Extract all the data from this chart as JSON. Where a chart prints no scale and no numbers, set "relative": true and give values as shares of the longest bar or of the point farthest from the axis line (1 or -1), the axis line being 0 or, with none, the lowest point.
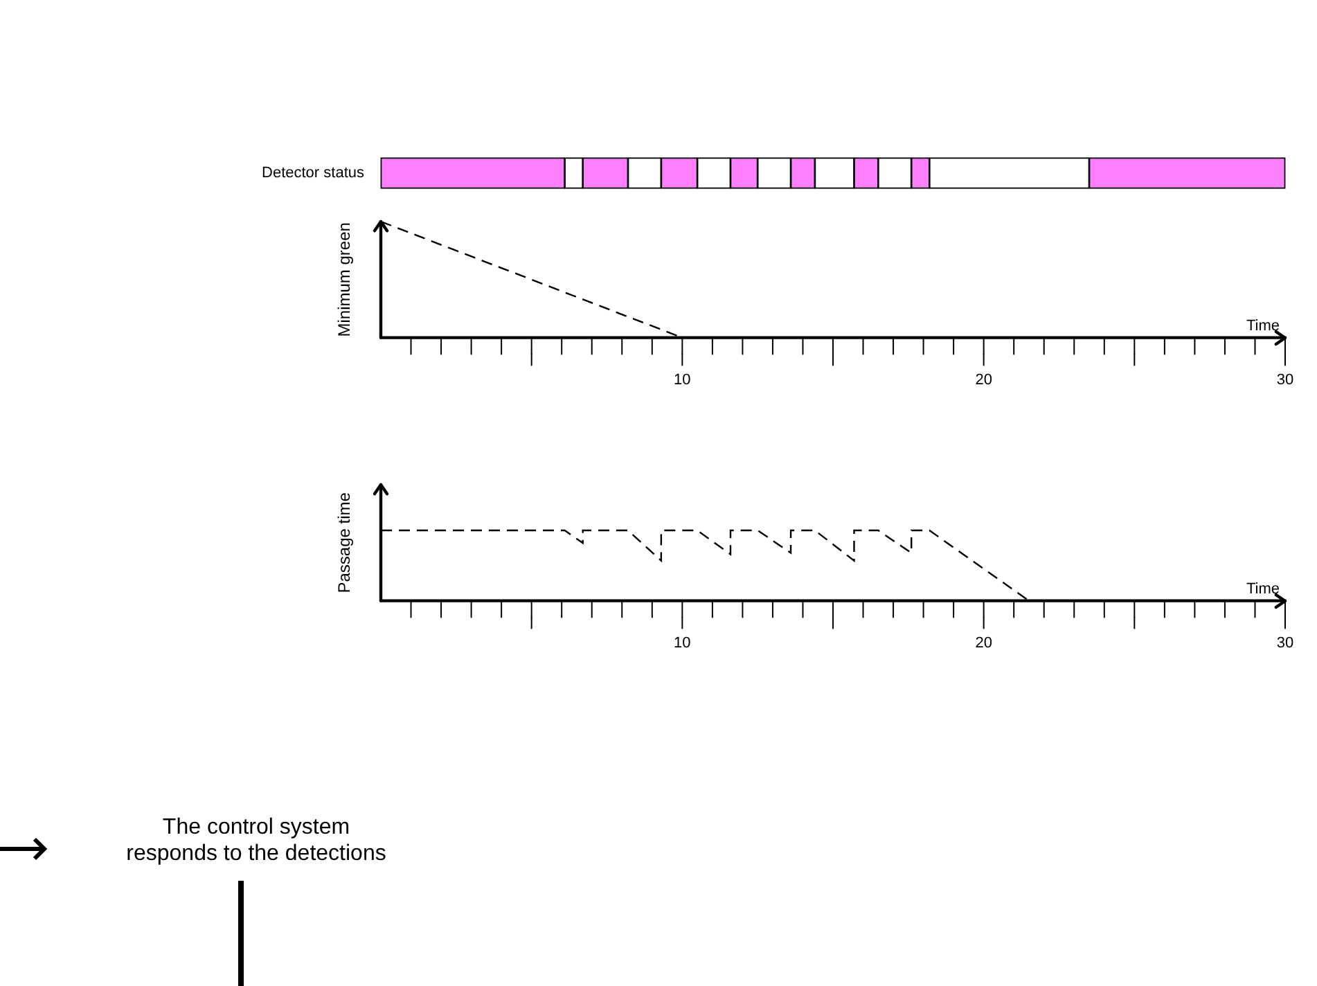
{
  "chart_data": [
    {
      "type": "bar",
      "orientation": "horizontal",
      "stacked": true,
      "categories": [
        "Detector status"
      ],
      "xlim": [
        0,
        30
      ],
      "tick_labels": "y",
      "legend": false,
      "grid": false,
      "series": [
        {
          "color": "#ff80ff",
          "values": [
            6.1
          ]
        },
        {
          "color": "#ffffff",
          "values": [
            0.6
          ]
        },
        {
          "color": "#ff80ff",
          "values": [
            1.5
          ]
        },
        {
          "color": "#ffffff",
          "values": [
            1.1
          ]
        },
        {
          "color": "#ff80ff",
          "values": [
            1.2
          ]
        },
        {
          "color": "#ffffff",
          "values": [
            1.1
          ]
        },
        {
          "color": "#ff80ff",
          "values": [
            0.9
          ]
        },
        {
          "color": "#ffffff",
          "values": [
            1.1
          ]
        },
        {
          "color": "#ff80ff",
          "values": [
            0.8
          ]
        },
        {
          "color": "#ffffff",
          "values": [
            1.3
          ]
        },
        {
          "color": "#ff80ff",
          "values": [
            0.8
          ]
        },
        {
          "color": "#ffffff",
          "values": [
            1.1
          ]
        },
        {
          "color": "#ff80ff",
          "values": [
            0.6
          ]
        },
        {
          "color": "#ffffff",
          "values": [
            5.3
          ]
        },
        {
          "color": "#ff80ff",
          "values": [
            6.5
          ]
        }
      ]
    },
    {
      "type": "line",
      "relative": true,
      "xlabel": "Time",
      "ylabel": "Minimum green",
      "xlim": [
        0,
        30
      ],
      "tick_labels": "x",
      "legend": false,
      "grid": false,
      "marker": "none",
      "line_style": "dashed",
      "xticks": [
        {
          "value": 1,
          "label": null
        },
        {
          "value": 2,
          "label": null
        },
        {
          "value": 3,
          "label": null
        },
        {
          "value": 4,
          "label": null
        },
        {
          "value": 5,
          "label": null
        },
        {
          "value": 6,
          "label": null
        },
        {
          "value": 7,
          "label": null
        },
        {
          "value": 8,
          "label": null
        },
        {
          "value": 9,
          "label": null
        },
        10,
        {
          "value": 11,
          "label": null
        },
        {
          "value": 12,
          "label": null
        },
        {
          "value": 13,
          "label": null
        },
        {
          "value": 14,
          "label": null
        },
        {
          "value": 15,
          "label": null
        },
        {
          "value": 16,
          "label": null
        },
        {
          "value": 17,
          "label": null
        },
        {
          "value": 18,
          "label": null
        },
        {
          "value": 19,
          "label": null
        },
        20,
        {
          "value": 21,
          "label": null
        },
        {
          "value": 22,
          "label": null
        },
        {
          "value": 23,
          "label": null
        },
        {
          "value": 24,
          "label": null
        },
        {
          "value": 25,
          "label": null
        },
        {
          "value": 26,
          "label": null
        },
        {
          "value": 27,
          "label": null
        },
        {
          "value": 28,
          "label": null
        },
        {
          "value": 29,
          "label": null
        },
        30
      ],
      "series": [
        {
          "color": "#000000",
          "x": [
            0,
            10
          ],
          "values": [
            1,
            0
          ]
        }
      ]
    },
    {
      "type": "line",
      "relative": true,
      "xlabel": "Time",
      "ylabel": "Passage time",
      "xlim": [
        0,
        30
      ],
      "tick_labels": "x",
      "legend": false,
      "grid": false,
      "marker": "none",
      "line_style": "dashed",
      "xticks": [
        {
          "value": 1,
          "label": null
        },
        {
          "value": 2,
          "label": null
        },
        {
          "value": 3,
          "label": null
        },
        {
          "value": 4,
          "label": null
        },
        {
          "value": 5,
          "label": null
        },
        {
          "value": 6,
          "label": null
        },
        {
          "value": 7,
          "label": null
        },
        {
          "value": 8,
          "label": null
        },
        {
          "value": 9,
          "label": null
        },
        10,
        {
          "value": 11,
          "label": null
        },
        {
          "value": 12,
          "label": null
        },
        {
          "value": 13,
          "label": null
        },
        {
          "value": 14,
          "label": null
        },
        {
          "value": 15,
          "label": null
        },
        {
          "value": 16,
          "label": null
        },
        {
          "value": 17,
          "label": null
        },
        {
          "value": 18,
          "label": null
        },
        {
          "value": 19,
          "label": null
        },
        20,
        {
          "value": 21,
          "label": null
        },
        {
          "value": 22,
          "label": null
        },
        {
          "value": 23,
          "label": null
        },
        {
          "value": 24,
          "label": null
        },
        {
          "value": 25,
          "label": null
        },
        {
          "value": 26,
          "label": null
        },
        {
          "value": 27,
          "label": null
        },
        {
          "value": 28,
          "label": null
        },
        {
          "value": 29,
          "label": null
        },
        30
      ],
      "series": [
        {
          "color": "#000000",
          "x": [
            0,
            6.1,
            6.7,
            6.7,
            8.2,
            9.3,
            9.3,
            10.5,
            11.6,
            11.6,
            12.5,
            13.6,
            13.6,
            14.4,
            15.7,
            15.7,
            16.5,
            17.6,
            17.6,
            18.2,
            21.5
          ],
          "values": [
            1,
            1,
            0.82,
            1,
            1,
            0.57,
            1,
            1,
            0.66,
            1,
            1,
            0.68,
            1,
            1,
            0.57,
            1,
            1,
            0.68,
            1,
            1,
            0
          ]
        }
      ],
      "annotations": [
        "The control system responds to the detections"
      ]
    }
  ]
}
